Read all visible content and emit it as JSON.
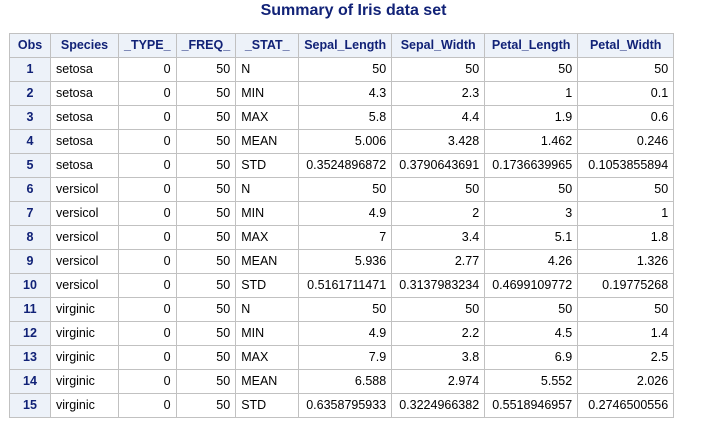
{
  "title": "Summary of Iris data set",
  "colors": {
    "title": "#112277",
    "header_bg": "#edf2f9",
    "grid": "#c1c1c1"
  },
  "columns": [
    "Obs",
    "Species",
    "_TYPE_",
    "_FREQ_",
    "_STAT_",
    "Sepal_Length",
    "Sepal_Width",
    "Petal_Length",
    "Petal_Width"
  ],
  "rows": [
    [
      "1",
      "setosa",
      "0",
      "50",
      "N",
      "50",
      "50",
      "50",
      "50"
    ],
    [
      "2",
      "setosa",
      "0",
      "50",
      "MIN",
      "4.3",
      "2.3",
      "1",
      "0.1"
    ],
    [
      "3",
      "setosa",
      "0",
      "50",
      "MAX",
      "5.8",
      "4.4",
      "1.9",
      "0.6"
    ],
    [
      "4",
      "setosa",
      "0",
      "50",
      "MEAN",
      "5.006",
      "3.428",
      "1.462",
      "0.246"
    ],
    [
      "5",
      "setosa",
      "0",
      "50",
      "STD",
      "0.3524896872",
      "0.3790643691",
      "0.1736639965",
      "0.1053855894"
    ],
    [
      "6",
      "versicol",
      "0",
      "50",
      "N",
      "50",
      "50",
      "50",
      "50"
    ],
    [
      "7",
      "versicol",
      "0",
      "50",
      "MIN",
      "4.9",
      "2",
      "3",
      "1"
    ],
    [
      "8",
      "versicol",
      "0",
      "50",
      "MAX",
      "7",
      "3.4",
      "5.1",
      "1.8"
    ],
    [
      "9",
      "versicol",
      "0",
      "50",
      "MEAN",
      "5.936",
      "2.77",
      "4.26",
      "1.326"
    ],
    [
      "10",
      "versicol",
      "0",
      "50",
      "STD",
      "0.5161711471",
      "0.3137983234",
      "0.4699109772",
      "0.19775268"
    ],
    [
      "11",
      "virginic",
      "0",
      "50",
      "N",
      "50",
      "50",
      "50",
      "50"
    ],
    [
      "12",
      "virginic",
      "0",
      "50",
      "MIN",
      "4.9",
      "2.2",
      "4.5",
      "1.4"
    ],
    [
      "13",
      "virginic",
      "0",
      "50",
      "MAX",
      "7.9",
      "3.8",
      "6.9",
      "2.5"
    ],
    [
      "14",
      "virginic",
      "0",
      "50",
      "MEAN",
      "6.588",
      "2.974",
      "5.552",
      "2.026"
    ],
    [
      "15",
      "virginic",
      "0",
      "50",
      "STD",
      "0.6358795933",
      "0.3224966382",
      "0.5518946957",
      "0.2746500556"
    ]
  ]
}
